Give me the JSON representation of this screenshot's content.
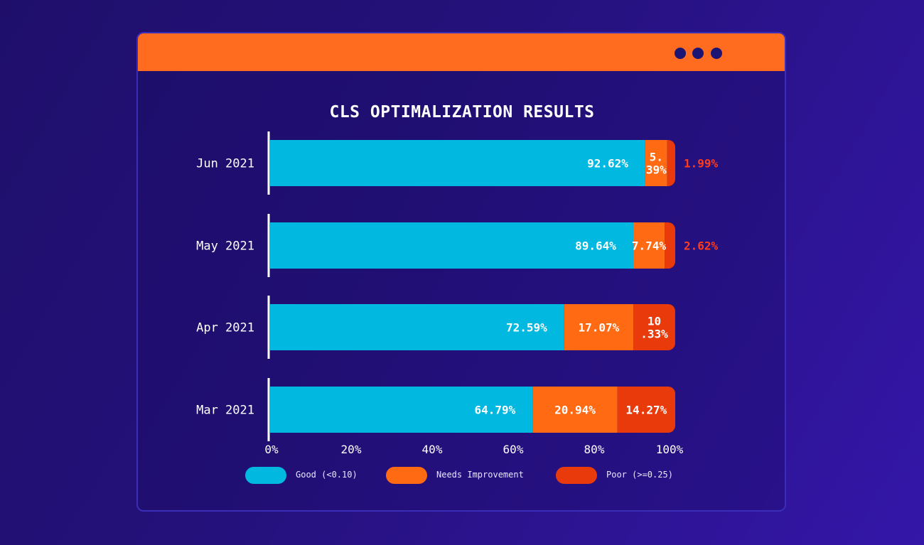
{
  "window": {
    "controls": [
      "dot-1",
      "dot-2",
      "dot-3"
    ],
    "titlebar_color": "#ff6b1f",
    "dot_color": "#1d1573"
  },
  "chart_data": {
    "type": "bar",
    "orientation": "horizontal",
    "stacked": true,
    "title": "CLS OPTIMALIZATION RESULTS",
    "categories": [
      "Jun 2021",
      "May 2021",
      "Apr 2021",
      "Mar 2021"
    ],
    "series": [
      {
        "name": "Good (<0.10)",
        "color": "#00b8e0",
        "values": [
          92.62,
          89.64,
          72.59,
          64.79
        ],
        "labels": [
          "92.62%",
          "89.64%",
          "72.59%",
          "64.79%"
        ]
      },
      {
        "name": "Needs Improvement",
        "color": "#ff6a13",
        "values": [
          5.39,
          7.74,
          17.07,
          20.94
        ],
        "labels": [
          "5.\n39%",
          "7.74%",
          "17.07%",
          "20.94%"
        ]
      },
      {
        "name": "Poor (>=0.25)",
        "color": "#e83a0a",
        "values": [
          1.99,
          2.62,
          10.33,
          14.27
        ],
        "labels": [
          "1.99%",
          "2.62%",
          "10\n.33%",
          "14.27%"
        ]
      }
    ],
    "label_outside": [
      [
        false,
        false,
        true
      ],
      [
        false,
        false,
        true
      ],
      [
        false,
        false,
        false
      ],
      [
        false,
        false,
        false
      ]
    ],
    "xlim": [
      0,
      100
    ],
    "xticks": [
      "0%",
      "20%",
      "40%",
      "60%",
      "80%",
      "100%"
    ],
    "grid": false,
    "legend_position": "bottom"
  }
}
